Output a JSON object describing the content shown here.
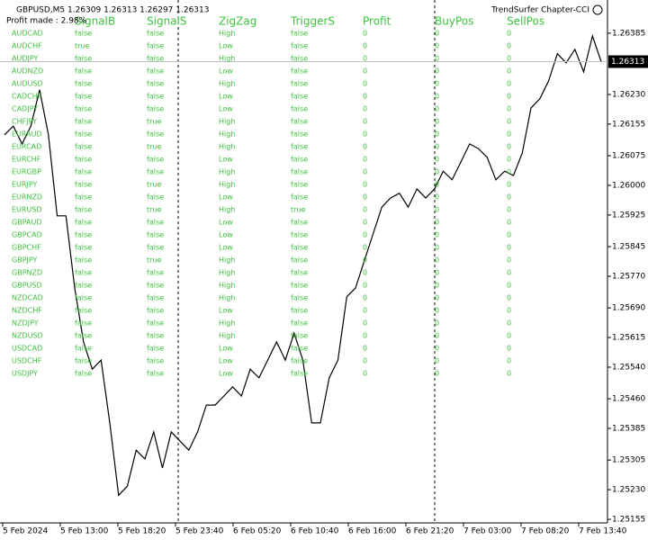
{
  "header": {
    "symbol_info": "GBPUSD,M5  1.26309 1.26313 1.26297 1.26313",
    "indicator": "TrendSurfer Chapter-CCI",
    "profit_made": "Profit made : 2.98%"
  },
  "price_chart": {
    "type": "line",
    "current_price": 1.26313,
    "values": [
      1.26128,
      1.2615,
      1.26105,
      1.2615,
      1.26242,
      1.26128,
      1.25923,
      1.25923,
      1.2574,
      1.25604,
      1.25535,
      1.25558,
      1.25399,
      1.25216,
      1.25239,
      1.2533,
      1.25308,
      1.25376,
      1.25285,
      1.25376,
      1.25353,
      1.2533,
      1.25376,
      1.25444,
      1.25444,
      1.25467,
      1.2549,
      1.25467,
      1.25535,
      1.25513,
      1.25558,
      1.25604,
      1.25558,
      1.25626,
      1.25558,
      1.25399,
      1.25399,
      1.25513,
      1.25558,
      1.25718,
      1.2574,
      1.25809,
      1.25877,
      1.25945,
      1.25968,
      1.2598,
      1.25945,
      1.25991,
      1.25968,
      1.25991,
      1.26036,
      1.26014,
      1.26059,
      1.26105,
      1.26093,
      1.26071,
      1.26014,
      1.26036,
      1.26025,
      1.26082,
      1.26196,
      1.26219,
      1.26264,
      1.26333,
      1.2631,
      1.26344,
      1.26287,
      1.26378,
      1.26313
    ],
    "ylim": [
      1.25146,
      1.26469
    ],
    "yticks": [
      1.26385,
      {
        "value": 1.2623,
        "label": "1.26230"
      },
      1.26155,
      1.26075,
      {
        "value": 1.26,
        "label": "1.26000"
      },
      1.25925,
      1.25845,
      {
        "value": 1.2577,
        "label": "1.25770"
      },
      {
        "value": 1.2569,
        "label": "1.25690"
      },
      1.25615,
      {
        "value": 1.2554,
        "label": "1.25540"
      },
      {
        "value": 1.2546,
        "label": "1.25460"
      },
      1.25385,
      1.25305,
      {
        "value": 1.2523,
        "label": "1.25230"
      },
      1.25155
    ],
    "xlabels": [
      "5 Feb 2024",
      "5 Feb 13:00",
      "5 Feb 18:20",
      "5 Feb 23:40",
      "6 Feb 05:20",
      "6 Feb 10:40",
      "6 Feb 16:00",
      "6 Feb 21:20",
      "7 Feb 03:00",
      "7 Feb 08:20",
      "7 Feb 13:40"
    ]
  },
  "table": {
    "headers": [
      "SignalB",
      "SignalS",
      "ZigZag",
      "TriggerS",
      "Profit",
      "BuyPos",
      "SellPos"
    ],
    "rows": [
      [
        "AUDCAD",
        "false",
        "false",
        "High",
        "false",
        "0",
        "0",
        "0"
      ],
      [
        "AUDCHF",
        "true",
        "false",
        "Low",
        "false",
        "0",
        "0",
        "0"
      ],
      [
        "AUDJPY",
        "false",
        "false",
        "High",
        "false",
        "0",
        "0",
        "0"
      ],
      [
        "AUDNZD",
        "false",
        "false",
        "Low",
        "false",
        "0",
        "0",
        "0"
      ],
      [
        "AUDUSD",
        "false",
        "false",
        "High",
        "false",
        "0",
        "0",
        "0"
      ],
      [
        "CADCHF",
        "false",
        "false",
        "Low",
        "false",
        "0",
        "0",
        "0"
      ],
      [
        "CADJPY",
        "false",
        "false",
        "Low",
        "false",
        "0",
        "0",
        "0"
      ],
      [
        "CHFJPY",
        "false",
        "true",
        "High",
        "false",
        "0",
        "0",
        "0"
      ],
      [
        "EURAUD",
        "false",
        "false",
        "High",
        "false",
        "0",
        "0",
        "0"
      ],
      [
        "EURCAD",
        "false",
        "true",
        "High",
        "false",
        "0",
        "0",
        "0"
      ],
      [
        "EURCHF",
        "false",
        "false",
        "Low",
        "false",
        "0",
        "0",
        "0"
      ],
      [
        "EURGBP",
        "false",
        "false",
        "High",
        "false",
        "0",
        "0",
        "0"
      ],
      [
        "EURJPY",
        "false",
        "true",
        "High",
        "false",
        "0",
        "0",
        "0"
      ],
      [
        "EURNZD",
        "false",
        "false",
        "Low",
        "false",
        "0",
        "0",
        "0"
      ],
      [
        "EURUSD",
        "false",
        "true",
        "High",
        "true",
        "0",
        "0",
        "0"
      ],
      [
        "GBPAUD",
        "false",
        "false",
        "Low",
        "false",
        "0",
        "0",
        "0"
      ],
      [
        "GBPCAD",
        "false",
        "false",
        "Low",
        "false",
        "0",
        "0",
        "0"
      ],
      [
        "GBPCHF",
        "false",
        "false",
        "Low",
        "false",
        "0",
        "0",
        "0"
      ],
      [
        "GBPJPY",
        "false",
        "true",
        "High",
        "false",
        "0",
        "0",
        "0"
      ],
      [
        "GBPNZD",
        "false",
        "false",
        "High",
        "false",
        "0",
        "0",
        "0"
      ],
      [
        "GBPUSD",
        "false",
        "false",
        "High",
        "false",
        "0",
        "0",
        "0"
      ],
      [
        "NZDCAD",
        "false",
        "false",
        "High",
        "false",
        "0",
        "0",
        "0"
      ],
      [
        "NZDCHF",
        "false",
        "false",
        "Low",
        "false",
        "0",
        "0",
        "0"
      ],
      [
        "NZDJPY",
        "false",
        "false",
        "High",
        "false",
        "0",
        "0",
        "0"
      ],
      [
        "NZDUSD",
        "false",
        "false",
        "High",
        "false",
        "0",
        "0",
        "0"
      ],
      [
        "USDCAD",
        "false",
        "false",
        "Low",
        "false",
        "0",
        "0",
        "0"
      ],
      [
        "USDCHF",
        "false",
        "false",
        "Low",
        "false",
        "0",
        "0",
        "0"
      ],
      [
        "USDJPY",
        "false",
        "false",
        "Low",
        "false",
        "0",
        "0",
        "0"
      ]
    ]
  }
}
